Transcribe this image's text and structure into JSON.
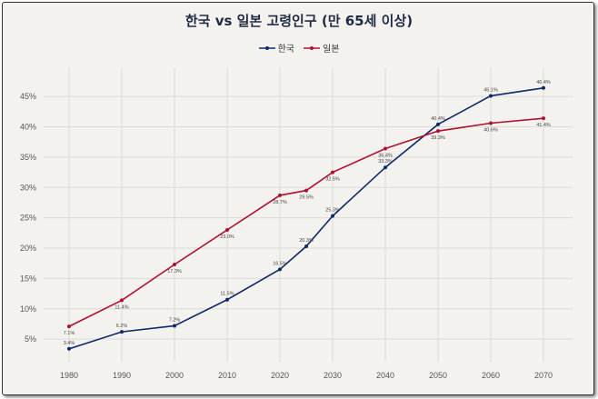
{
  "chart_data": {
    "type": "line",
    "title": "한국 vs 일본 고령인구 (만 65세 이상)",
    "x": [
      1980,
      1990,
      2000,
      2010,
      2020,
      2025,
      2030,
      2040,
      2050,
      2060,
      2070
    ],
    "xticks": [
      "1980",
      "1990",
      "2000",
      "2010",
      "2020",
      "2030",
      "2040",
      "2050",
      "2060",
      "2070"
    ],
    "yticks": [
      "5%",
      "10%",
      "15%",
      "20%",
      "25%",
      "30%",
      "35%",
      "40%",
      "45%"
    ],
    "ylim": [
      0,
      50
    ],
    "grid": true,
    "legend_placement": "top-center",
    "series": [
      {
        "name": "한국",
        "color": "#0d2a6b",
        "values": [
          3.4,
          6.2,
          7.2,
          11.5,
          16.5,
          20.3,
          25.3,
          33.3,
          40.4,
          45.1,
          46.4
        ],
        "labels": [
          "3.4%",
          "6.2%",
          "7.2%",
          "11.5%",
          "16.5%",
          "20.3%",
          "25.3%",
          "33.3%",
          "40.4%",
          "45.1%",
          "46.4%"
        ]
      },
      {
        "name": "일본",
        "color": "#b0112e",
        "values": [
          7.1,
          11.4,
          17.3,
          23.0,
          28.7,
          29.5,
          32.5,
          36.4,
          39.3,
          40.6,
          41.4
        ],
        "labels": [
          "7.1%",
          "11.4%",
          "17.3%",
          "23.0%",
          "28.7%",
          "29.5%",
          "32.5%",
          "36.4%",
          "39.3%",
          "40.6%",
          "41.4%"
        ]
      }
    ]
  }
}
